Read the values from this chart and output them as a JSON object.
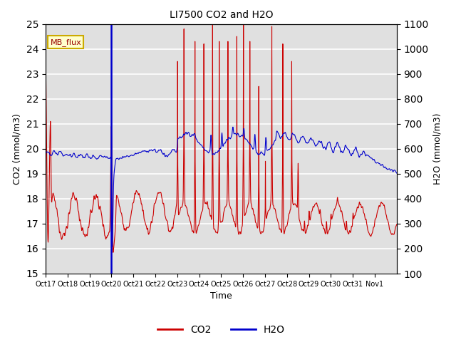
{
  "title": "LI7500 CO2 and H2O",
  "xlabel": "Time",
  "ylabel_left": "CO2 (mmol/m3)",
  "ylabel_right": "H2O (mmol/m3)",
  "ylim_left": [
    15.0,
    25.0
  ],
  "ylim_right": [
    100,
    1100
  ],
  "yticks_left": [
    15.0,
    16.0,
    17.0,
    18.0,
    19.0,
    20.0,
    21.0,
    22.0,
    23.0,
    24.0,
    25.0
  ],
  "yticks_right": [
    100,
    200,
    300,
    400,
    500,
    600,
    700,
    800,
    900,
    1000,
    1100
  ],
  "xtick_labels": [
    "Oct 17",
    "Oct 18",
    "Oct 19",
    "Oct 20",
    "Oct 21",
    "Oct 22",
    "Oct 23",
    "Oct 24",
    "Oct 25",
    "Oct 26",
    "Oct 27",
    "Oct 28",
    "Oct 29",
    "Oct 30",
    "Oct 31",
    "Nov 1"
  ],
  "co2_color": "#cc0000",
  "h2o_color": "#0000cc",
  "vline_color": "#0000cc",
  "annotation_text": "MB_flux",
  "bg_color": "#e0e0e0",
  "grid_color": "#ffffff",
  "linewidth": 0.8,
  "vline_x": 3.0
}
